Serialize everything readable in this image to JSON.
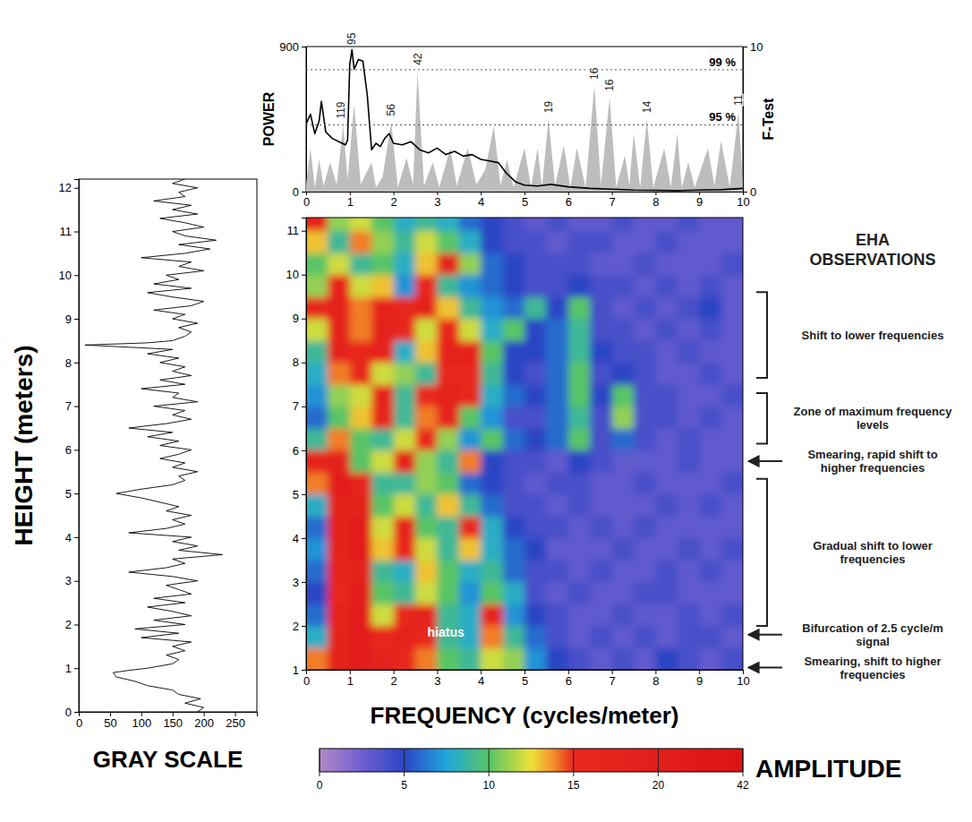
{
  "chart_data": [
    {
      "type": "line",
      "orientation": "horizontal",
      "color": "#000000",
      "xlabel": "GRAY SCALE",
      "ylabel": "HEIGHT (meters)",
      "xlim": [
        0,
        285
      ],
      "xticks": [
        0,
        50,
        100,
        150,
        200,
        250
      ],
      "ylim": [
        0,
        12.2
      ],
      "yticks": [
        0,
        1,
        2,
        3,
        4,
        5,
        6,
        7,
        8,
        9,
        10,
        11,
        12
      ],
      "y": [
        0,
        0.1,
        0.2,
        0.3,
        0.4,
        0.5,
        0.6,
        0.7,
        0.8,
        0.9,
        0.95,
        1,
        1.1,
        1.2,
        1.3,
        1.4,
        1.5,
        1.6,
        1.7,
        1.8,
        1.9,
        2,
        2.1,
        2.2,
        2.3,
        2.4,
        2.5,
        2.6,
        2.7,
        2.8,
        2.9,
        3,
        3.1,
        3.2,
        3.3,
        3.4,
        3.5,
        3.6,
        3.7,
        3.8,
        3.9,
        4,
        4.1,
        4.2,
        4.3,
        4.4,
        4.5,
        4.6,
        4.7,
        4.8,
        4.9,
        5,
        5.1,
        5.2,
        5.3,
        5.4,
        5.5,
        5.6,
        5.7,
        5.8,
        5.9,
        6,
        6.1,
        6.2,
        6.3,
        6.4,
        6.5,
        6.6,
        6.7,
        6.8,
        6.9,
        7,
        7.1,
        7.2,
        7.3,
        7.4,
        7.5,
        7.6,
        7.7,
        7.8,
        7.9,
        8,
        8.1,
        8.2,
        8.3,
        8.4,
        8.45,
        8.5,
        8.6,
        8.7,
        8.8,
        8.9,
        9,
        9.1,
        9.2,
        9.3,
        9.4,
        9.5,
        9.6,
        9.7,
        9.8,
        9.9,
        10,
        10.1,
        10.2,
        10.3,
        10.4,
        10.5,
        10.6,
        10.7,
        10.8,
        10.9,
        11,
        11.1,
        11.2,
        11.3,
        11.4,
        11.5,
        11.6,
        11.7,
        11.8,
        11.9,
        12,
        12.1,
        12.2
      ],
      "values": [
        190,
        200,
        170,
        195,
        160,
        150,
        110,
        90,
        60,
        55,
        80,
        110,
        150,
        160,
        140,
        170,
        150,
        180,
        100,
        160,
        90,
        170,
        120,
        180,
        150,
        110,
        170,
        120,
        180,
        160,
        140,
        190,
        150,
        80,
        140,
        170,
        150,
        230,
        160,
        190,
        150,
        180,
        80,
        140,
        170,
        150,
        180,
        140,
        160,
        130,
        100,
        60,
        100,
        150,
        170,
        160,
        190,
        150,
        170,
        130,
        160,
        180,
        130,
        160,
        110,
        150,
        80,
        140,
        180,
        150,
        170,
        120,
        190,
        150,
        160,
        100,
        170,
        130,
        180,
        150,
        170,
        130,
        160,
        110,
        150,
        10,
        110,
        150,
        170,
        180,
        160,
        190,
        150,
        170,
        120,
        180,
        200,
        150,
        110,
        180,
        120,
        160,
        140,
        200,
        160,
        180,
        100,
        170,
        210,
        160,
        220,
        170,
        150,
        200,
        170,
        130,
        190,
        150,
        180,
        120,
        170,
        160,
        190,
        150,
        170
      ]
    },
    {
      "type": "line",
      "ylabel": "POWER",
      "y2label": "F-Test",
      "xlim": [
        0,
        10
      ],
      "xticks": [
        0,
        1,
        2,
        3,
        4,
        5,
        6,
        7,
        8,
        9,
        10
      ],
      "ylim": [
        0,
        900
      ],
      "yticks": [
        0,
        900
      ],
      "y2lim": [
        0,
        10
      ],
      "y2ticks": [
        0,
        10
      ],
      "series": [
        {
          "type": "line",
          "color": "#000000",
          "x": [
            0,
            0.1,
            0.2,
            0.3,
            0.35,
            0.45,
            0.6,
            0.75,
            0.9,
            0.95,
            1.0,
            1.05,
            1.1,
            1.2,
            1.3,
            1.4,
            1.5,
            1.6,
            1.7,
            1.8,
            1.9,
            2.0,
            2.2,
            2.4,
            2.6,
            2.8,
            3.0,
            3.2,
            3.4,
            3.6,
            3.8,
            4.0,
            4.2,
            4.4,
            4.6,
            4.8,
            5.0,
            5.3,
            5.6,
            6.0,
            6.5,
            7.0,
            7.5,
            8.0,
            8.5,
            9.0,
            9.5,
            10
          ],
          "values": [
            420,
            480,
            360,
            440,
            560,
            370,
            330,
            310,
            290,
            320,
            790,
            880,
            760,
            820,
            810,
            600,
            260,
            300,
            280,
            330,
            360,
            300,
            290,
            310,
            260,
            240,
            270,
            230,
            250,
            220,
            230,
            200,
            190,
            180,
            110,
            60,
            40,
            35,
            45,
            30,
            20,
            15,
            10,
            8,
            6,
            10,
            12,
            20
          ]
        },
        {
          "type": "area",
          "axis": "y2",
          "color": "#bdbdbd",
          "x": [
            0,
            0.1,
            0.2,
            0.3,
            0.4,
            0.55,
            0.7,
            0.85,
            0.95,
            1.1,
            1.25,
            1.5,
            1.6,
            1.75,
            1.95,
            2.1,
            2.3,
            2.45,
            2.55,
            2.7,
            2.9,
            3.05,
            3.3,
            3.45,
            3.7,
            3.9,
            4.1,
            4.3,
            4.45,
            4.6,
            4.75,
            5.0,
            5.15,
            5.3,
            5.4,
            5.55,
            5.7,
            5.9,
            6.05,
            6.2,
            6.4,
            6.6,
            6.75,
            6.95,
            7.1,
            7.3,
            7.4,
            7.5,
            7.65,
            7.8,
            7.95,
            8.2,
            8.35,
            8.5,
            8.6,
            8.75,
            8.9,
            9.2,
            9.35,
            9.5,
            9.7,
            9.9,
            10
          ],
          "values": [
            0.5,
            3.0,
            0.3,
            2.2,
            0.4,
            2.0,
            0.5,
            4.6,
            0.8,
            6.0,
            0.5,
            2.0,
            0.3,
            1.0,
            4.8,
            0.3,
            2.3,
            0.5,
            8.3,
            0.4,
            2.0,
            0.3,
            3.0,
            0.4,
            3.0,
            0.5,
            1.5,
            4.5,
            0.4,
            2.2,
            0.3,
            3.0,
            0.3,
            3.0,
            0.3,
            5.0,
            0.4,
            3.2,
            0.3,
            3.0,
            0.3,
            7.3,
            0.5,
            6.5,
            0.3,
            2.5,
            0.4,
            4.0,
            0.3,
            5.0,
            0.3,
            3.0,
            0.3,
            4.0,
            0.3,
            2.0,
            0.3,
            3.0,
            0.4,
            3.5,
            0.3,
            5.5,
            0.5
          ]
        }
      ],
      "reference_lines": [
        {
          "text": "99 %",
          "value": 8.4,
          "axis": "y2"
        },
        {
          "text": "95 %",
          "value": 4.6,
          "axis": "y2"
        }
      ],
      "annotations": [
        {
          "text": "95",
          "x": 1.05,
          "y": 10,
          "axis": "y2"
        },
        {
          "text": "119",
          "x": 0.8,
          "y": 4.9,
          "axis": "y2"
        },
        {
          "text": "56",
          "x": 1.95,
          "y": 5.1,
          "axis": "y2"
        },
        {
          "text": "42",
          "x": 2.55,
          "y": 8.6,
          "axis": "y2"
        },
        {
          "text": "19",
          "x": 5.55,
          "y": 5.3,
          "axis": "y2"
        },
        {
          "text": "16",
          "x": 6.6,
          "y": 7.6,
          "axis": "y2"
        },
        {
          "text": "16",
          "x": 6.95,
          "y": 6.8,
          "axis": "y2"
        },
        {
          "text": "14",
          "x": 7.8,
          "y": 5.3,
          "axis": "y2"
        },
        {
          "text": "11",
          "x": 9.9,
          "y": 5.8,
          "axis": "y2"
        }
      ]
    },
    {
      "type": "heatmap",
      "xlabel": "FREQUENCY (cycles/meter)",
      "xlim": [
        0,
        10
      ],
      "xticks": [
        0,
        1,
        2,
        3,
        4,
        5,
        6,
        7,
        8,
        9,
        10
      ],
      "ylim": [
        1,
        11.3
      ],
      "yticks": [
        1,
        2,
        3,
        4,
        5,
        6,
        7,
        8,
        9,
        10,
        11
      ],
      "x": [
        0.25,
        0.75,
        1.25,
        1.75,
        2.25,
        2.75,
        3.25,
        3.75,
        4.25,
        4.75,
        5.25,
        5.75,
        6.25,
        6.75,
        7.25,
        7.75,
        8.25,
        8.75,
        9.25,
        9.75
      ],
      "y": [
        1.25,
        1.75,
        2.25,
        2.75,
        3.25,
        3.75,
        4.25,
        4.75,
        5.25,
        5.75,
        6.25,
        6.75,
        7.25,
        7.75,
        8.25,
        8.75,
        9.25,
        9.75,
        10.25,
        10.75,
        11.25
      ],
      "values": [
        [
          14,
          18,
          20,
          18,
          16,
          14,
          10,
          9,
          12,
          11,
          7,
          5,
          4,
          3,
          4,
          3,
          5,
          4,
          3,
          4
        ],
        [
          8,
          18,
          22,
          16,
          17,
          16,
          9,
          8,
          14,
          9,
          6,
          4,
          3,
          4,
          3,
          4,
          3,
          4,
          4,
          3
        ],
        [
          6,
          17,
          21,
          12,
          16,
          18,
          9,
          8,
          17,
          7,
          5,
          4,
          3,
          3,
          4,
          3,
          3,
          4,
          3,
          4
        ],
        [
          5,
          16,
          20,
          10,
          9,
          12,
          10,
          7,
          10,
          8,
          4,
          3,
          4,
          3,
          3,
          4,
          4,
          3,
          3,
          3
        ],
        [
          6,
          17,
          19,
          9,
          8,
          13,
          10,
          8,
          9,
          6,
          4,
          4,
          3,
          4,
          3,
          3,
          4,
          3,
          4,
          3
        ],
        [
          7,
          18,
          20,
          13,
          16,
          12,
          9,
          13,
          8,
          6,
          5,
          3,
          3,
          3,
          4,
          3,
          3,
          4,
          3,
          4
        ],
        [
          6,
          19,
          20,
          12,
          17,
          10,
          9,
          15,
          8,
          5,
          4,
          4,
          3,
          4,
          3,
          4,
          3,
          3,
          3,
          3
        ],
        [
          8,
          18,
          19,
          10,
          12,
          9,
          13,
          9,
          6,
          4,
          4,
          3,
          4,
          3,
          3,
          3,
          4,
          3,
          4,
          3
        ],
        [
          14,
          20,
          17,
          9,
          9,
          11,
          10,
          6,
          5,
          4,
          3,
          4,
          4,
          3,
          3,
          4,
          3,
          3,
          3,
          4
        ],
        [
          17,
          18,
          10,
          12,
          18,
          11,
          9,
          14,
          5,
          4,
          4,
          3,
          5,
          4,
          3,
          3,
          3,
          4,
          3,
          3
        ],
        [
          9,
          14,
          10,
          9,
          12,
          15,
          11,
          7,
          10,
          6,
          5,
          6,
          10,
          4,
          6,
          4,
          3,
          4,
          3,
          3
        ],
        [
          6,
          10,
          13,
          16,
          9,
          14,
          17,
          10,
          7,
          4,
          4,
          6,
          9,
          4,
          11,
          4,
          4,
          3,
          4,
          3
        ],
        [
          7,
          11,
          12,
          17,
          9,
          16,
          17,
          16,
          8,
          6,
          5,
          6,
          10,
          5,
          10,
          4,
          4,
          3,
          3,
          4
        ],
        [
          8,
          14,
          16,
          12,
          11,
          9,
          16,
          16,
          9,
          5,
          4,
          6,
          10,
          4,
          5,
          4,
          3,
          3,
          4,
          3
        ],
        [
          9,
          18,
          15,
          17,
          8,
          13,
          17,
          18,
          10,
          5,
          5,
          6,
          9,
          5,
          4,
          4,
          3,
          4,
          3,
          3
        ],
        [
          12,
          19,
          14,
          18,
          15,
          12,
          16,
          12,
          8,
          10,
          5,
          6,
          9,
          4,
          4,
          3,
          4,
          3,
          4,
          3
        ],
        [
          16,
          18,
          14,
          17,
          16,
          18,
          13,
          9,
          7,
          6,
          9,
          5,
          10,
          4,
          3,
          4,
          3,
          4,
          5,
          3
        ],
        [
          11,
          17,
          12,
          13,
          7,
          15,
          9,
          7,
          6,
          5,
          4,
          4,
          5,
          4,
          4,
          3,
          4,
          3,
          4,
          3
        ],
        [
          10,
          12,
          9,
          10,
          8,
          13,
          18,
          11,
          6,
          5,
          4,
          4,
          4,
          3,
          3,
          4,
          3,
          3,
          3,
          4
        ],
        [
          13,
          9,
          14,
          11,
          9,
          12,
          10,
          8,
          5,
          4,
          4,
          3,
          4,
          4,
          3,
          3,
          4,
          3,
          3,
          3
        ],
        [
          18,
          11,
          12,
          10,
          8,
          9,
          8,
          6,
          5,
          4,
          3,
          4,
          3,
          3,
          4,
          3,
          3,
          4,
          3,
          3
        ]
      ],
      "annotations": [
        {
          "text": "hiatus",
          "x": 3.2,
          "y": 1.85
        }
      ],
      "colorbar": {
        "label": "AMPLITUDE",
        "range": [
          0,
          42
        ],
        "ticks": [
          0,
          5,
          10,
          15,
          20,
          42
        ]
      },
      "observations": {
        "title": "EHA OBSERVATIONS",
        "items": [
          {
            "text": "Shift to lower frequencies",
            "y_range": [
              7.65,
              9.6
            ]
          },
          {
            "text": "Zone of maximum frequency levels",
            "y_range": [
              6.15,
              7.3
            ]
          },
          {
            "text": "Smearing, rapid shift to higher frequencies",
            "y": 5.75
          },
          {
            "text": "Gradual shift to lower frequencies",
            "y_range": [
              2.0,
              5.35
            ]
          },
          {
            "text": "Bifurcation of 2.5 cycle/m signal",
            "y": 1.8
          },
          {
            "text": "Smearing, shift to higher frequencies",
            "y": 1.05
          }
        ]
      }
    }
  ]
}
